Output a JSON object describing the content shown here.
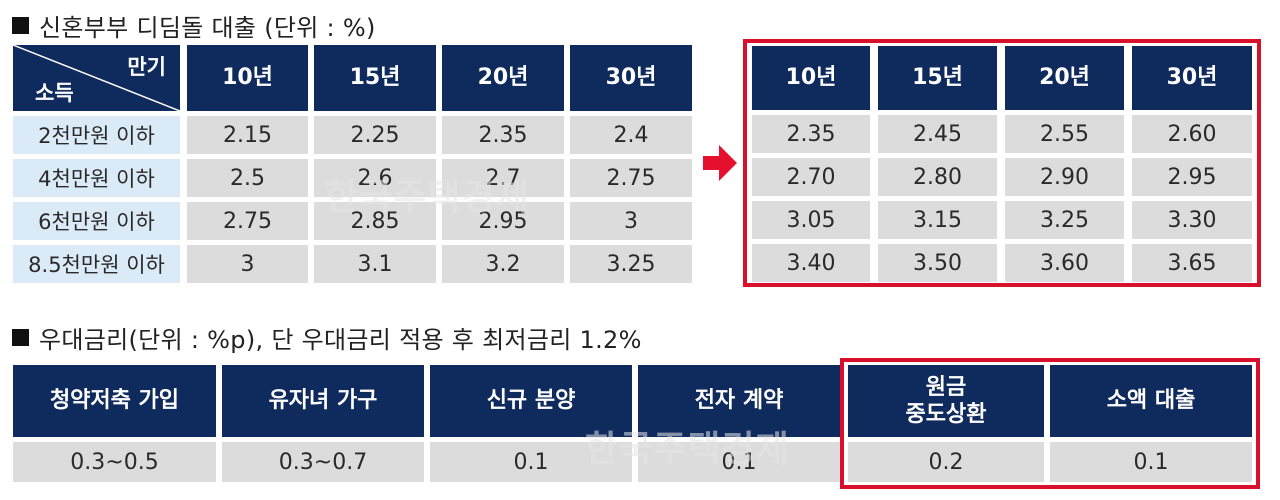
{
  "section1": {
    "title": "신혼부부 디딤돌 대출 (단위 : %)"
  },
  "corner": {
    "top_label": "만기",
    "bottom_label": "소득"
  },
  "terms": [
    "10년",
    "15년",
    "20년",
    "30년"
  ],
  "income_rows": [
    "2천만원 이하",
    "4천만원 이하",
    "6천만원 이하",
    "8.5천만원 이하"
  ],
  "old_rates": [
    [
      "2.15",
      "2.25",
      "2.35",
      "2.4"
    ],
    [
      "2.5",
      "2.6",
      "2.7",
      "2.75"
    ],
    [
      "2.75",
      "2.85",
      "2.95",
      "3"
    ],
    [
      "3",
      "3.1",
      "3.2",
      "3.25"
    ]
  ],
  "new_rates": [
    [
      "2.35",
      "2.45",
      "2.55",
      "2.60"
    ],
    [
      "2.70",
      "2.80",
      "2.90",
      "2.95"
    ],
    [
      "3.05",
      "3.15",
      "3.25",
      "3.30"
    ],
    [
      "3.40",
      "3.50",
      "3.60",
      "3.65"
    ]
  ],
  "section2": {
    "title": "우대금리(단위 : %p), 단 우대금리 적용 후 최저금리 1.2%"
  },
  "preferential": {
    "headers": [
      "청약저축 가입",
      "유자녀 가구",
      "신규 분양",
      "전자 계약",
      "원금\n중도상환",
      "소액 대출"
    ],
    "values": [
      "0.3~0.5",
      "0.3~0.7",
      "0.1",
      "0.1",
      "0.2",
      "0.1"
    ]
  },
  "watermark": "한국주택경제",
  "colors": {
    "header": "#0f2a5c",
    "cell": "#dcdcdc",
    "row_label": "#dbeaf7",
    "highlight": "#d8102c"
  },
  "icons": {
    "arrow": "right-arrow-icon",
    "bullet": "square-bullet-icon"
  }
}
